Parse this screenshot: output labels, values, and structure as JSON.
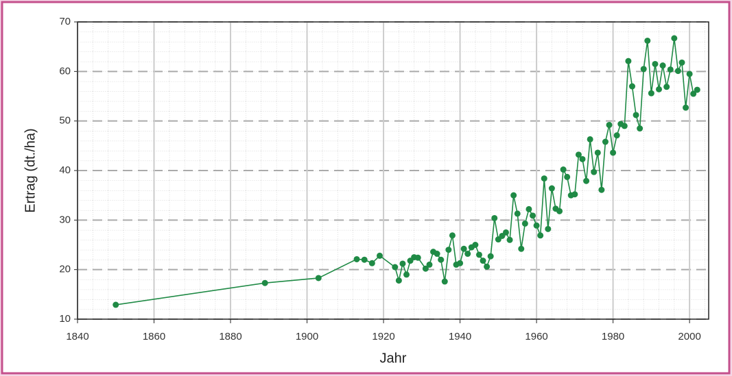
{
  "chart_data": {
    "type": "line",
    "x_label": "Jahr",
    "y_label": "Ertrag (dt./ha)",
    "xlim": [
      1840,
      2005
    ],
    "xticks": [
      1840,
      1860,
      1880,
      1900,
      1920,
      1940,
      1960,
      1980,
      2000
    ],
    "ylim": [
      10,
      70
    ],
    "yticks": [
      10,
      20,
      30,
      40,
      50,
      60,
      70
    ],
    "grid": true,
    "series": [
      {
        "color": "#1f8a45",
        "x": [
          1850,
          1889,
          1903,
          1913,
          1915,
          1917,
          1919,
          1923,
          1924,
          1925,
          1926,
          1927,
          1928,
          1929,
          1931,
          1932,
          1933,
          1934,
          1935,
          1936,
          1937,
          1938,
          1939,
          1940,
          1941,
          1942,
          1943,
          1944,
          1945,
          1946,
          1947,
          1948,
          1949,
          1950,
          1951,
          1952,
          1953,
          1954,
          1955,
          1956,
          1957,
          1958,
          1959,
          1960,
          1961,
          1962,
          1963,
          1964,
          1965,
          1966,
          1967,
          1968,
          1969,
          1970,
          1971,
          1972,
          1973,
          1974,
          1975,
          1976,
          1977,
          1978,
          1979,
          1980,
          1981,
          1982,
          1983,
          1984,
          1985,
          1986,
          1987,
          1988,
          1989,
          1990,
          1991,
          1992,
          1993,
          1994,
          1995,
          1996,
          1997,
          1998,
          1999,
          2000,
          2001,
          2002
        ],
        "values": [
          12.9,
          17.3,
          18.3,
          22.1,
          22.0,
          21.3,
          22.8,
          20.5,
          17.8,
          21.2,
          19.0,
          21.8,
          22.5,
          22.4,
          20.2,
          21.0,
          23.6,
          23.2,
          22.0,
          17.6,
          24.0,
          26.9,
          21.0,
          21.3,
          24.2,
          23.2,
          24.5,
          25.0,
          23.0,
          21.8,
          20.6,
          22.7,
          30.4,
          26.1,
          26.8,
          27.5,
          26.0,
          35.0,
          31.3,
          24.2,
          29.3,
          32.2,
          30.9,
          28.9,
          26.9,
          38.4,
          28.2,
          36.4,
          32.3,
          31.8,
          40.2,
          38.7,
          35.0,
          35.2,
          43.2,
          42.3,
          37.9,
          46.3,
          39.7,
          43.6,
          36.1,
          45.8,
          49.2,
          43.6,
          47.1,
          49.4,
          49.0,
          62.1,
          57.0,
          51.2,
          48.5,
          60.5,
          66.2,
          55.6,
          61.5,
          56.4,
          61.2,
          56.9,
          60.4,
          66.7,
          60.1,
          61.8,
          52.7,
          59.5,
          55.5,
          56.3
        ]
      }
    ]
  }
}
